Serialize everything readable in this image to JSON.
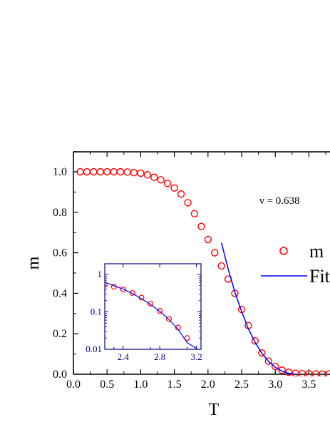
{
  "chart_data": [
    {
      "type": "scatter",
      "xlabel": "T",
      "ylabel": "m",
      "xlim": [
        0.0,
        3.85
      ],
      "ylim": [
        0.0,
        1.1
      ],
      "x_ticks": [
        "0.0",
        "0.5",
        "1.0",
        "1.5",
        "2.0",
        "2.5",
        "3.0",
        "3.5"
      ],
      "y_ticks": [
        "0.0",
        "0.2",
        "0.4",
        "0.6",
        "0.8",
        "1.0"
      ],
      "annotation": "ν = 0.638",
      "legend_position": "right",
      "series": [
        {
          "name": "m",
          "marker": "open-circle",
          "color": "#ff0000",
          "x": [
            0.1,
            0.2,
            0.3,
            0.4,
            0.5,
            0.6,
            0.7,
            0.8,
            0.9,
            1.0,
            1.1,
            1.2,
            1.3,
            1.4,
            1.5,
            1.6,
            1.7,
            1.8,
            1.9,
            2.0,
            2.1,
            2.2,
            2.3,
            2.4,
            2.5,
            2.6,
            2.7,
            2.8,
            2.9,
            3.0,
            3.1,
            3.2,
            3.3,
            3.4,
            3.5,
            3.6,
            3.7,
            3.8
          ],
          "y": [
            1.0,
            1.0,
            1.0,
            1.0,
            1.0,
            1.0,
            1.0,
            0.999,
            0.996,
            0.993,
            0.985,
            0.973,
            0.96,
            0.942,
            0.92,
            0.89,
            0.847,
            0.793,
            0.73,
            0.665,
            0.6,
            0.535,
            0.47,
            0.4,
            0.32,
            0.24,
            0.165,
            0.106,
            0.065,
            0.038,
            0.02,
            0.01,
            0.005,
            0.003,
            0.002,
            0.001,
            0.001,
            0.001
          ]
        },
        {
          "name": "Fit",
          "line": "solid",
          "color": "#0000ff",
          "x": [
            2.2,
            2.3,
            2.4,
            2.5,
            2.6,
            2.7,
            2.8,
            2.9,
            3.0,
            3.1,
            3.2,
            3.3
          ],
          "y": [
            0.65,
            0.52,
            0.405,
            0.31,
            0.225,
            0.158,
            0.104,
            0.063,
            0.034,
            0.015,
            0.005,
            0.0
          ]
        }
      ]
    },
    {
      "type": "scatter",
      "xlim": [
        2.2,
        3.25
      ],
      "ylim": [
        0.01,
        1.0
      ],
      "yscale": "log",
      "x_ticks": [
        "2.4",
        "2.8",
        "3.2"
      ],
      "y_ticks": [
        "0.01",
        "0.1",
        "1"
      ],
      "series": [
        {
          "marker": "open-circle",
          "color": "#ff0000",
          "x": [
            2.2,
            2.3,
            2.4,
            2.5,
            2.6,
            2.7,
            2.8,
            2.9,
            3.0,
            3.1
          ],
          "y": [
            0.535,
            0.47,
            0.4,
            0.32,
            0.24,
            0.165,
            0.106,
            0.065,
            0.038,
            0.02
          ]
        },
        {
          "line": "solid",
          "color": "#0000ff",
          "x": [
            2.2,
            2.3,
            2.4,
            2.5,
            2.6,
            2.7,
            2.8,
            2.9,
            3.0,
            3.1,
            3.2
          ],
          "y": [
            0.62,
            0.5,
            0.405,
            0.31,
            0.225,
            0.158,
            0.104,
            0.063,
            0.034,
            0.015,
            0.0105
          ]
        }
      ]
    }
  ]
}
